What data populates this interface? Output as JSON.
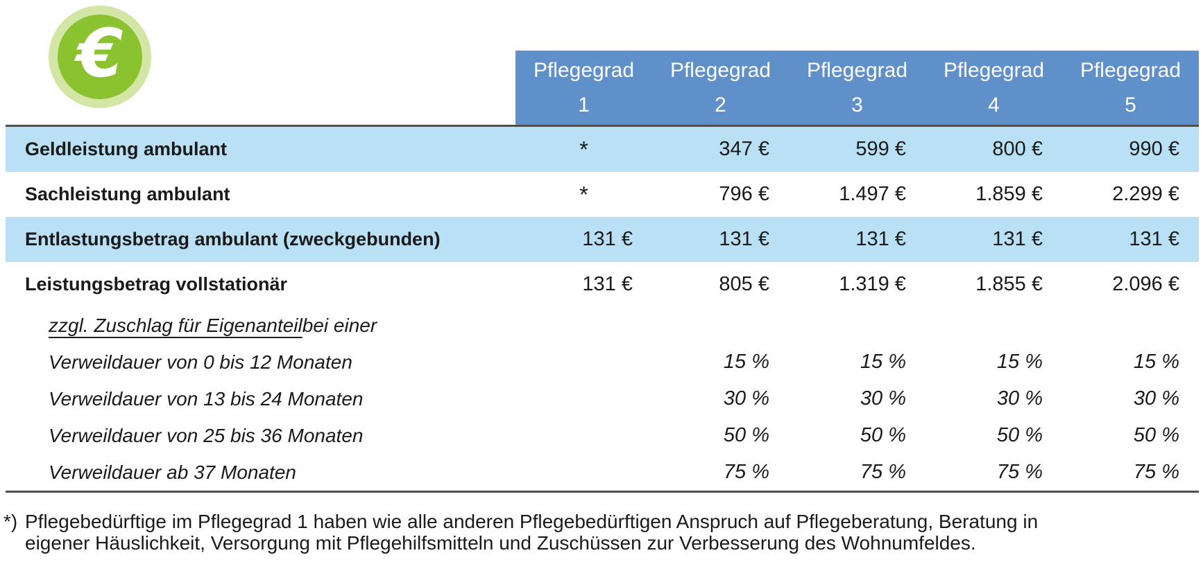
{
  "icon": {
    "symbol": "€",
    "name": "euro-badge"
  },
  "colors": {
    "header_bg": "#6090c9",
    "header_text": "#ffffff",
    "highlight_row_bg": "#b9e0f4",
    "rule_line": "#4f4f4f",
    "icon_green": "#8bc22f",
    "icon_ring_green": "#d4e6a5",
    "body_text": "#1a1a1a"
  },
  "table": {
    "col_headers": [
      {
        "line1": "Pflegegrad",
        "line2": "1"
      },
      {
        "line1": "Pflegegrad",
        "line2": "2"
      },
      {
        "line1": "Pflegegrad",
        "line2": "3"
      },
      {
        "line1": "Pflegegrad",
        "line2": "4"
      },
      {
        "line1": "Pflegegrad",
        "line2": "5"
      }
    ],
    "rows": [
      {
        "label": "Geldleistung ambulant",
        "style": "highlight",
        "values": [
          "*",
          "347 €",
          "599 €",
          "800 €",
          "990 €"
        ]
      },
      {
        "label": "Sachleistung ambulant",
        "style": "plain",
        "values": [
          "*",
          "796 €",
          "1.497 €",
          "1.859 €",
          "2.299 €"
        ]
      },
      {
        "label": "Entlastungsbetrag ambulant (zweckgebunden)",
        "style": "highlight",
        "values": [
          "131 €",
          "131 €",
          "131 €",
          "131 €",
          "131 €"
        ]
      },
      {
        "label": "Leistungsbetrag vollstationär",
        "style": "plain",
        "values": [
          "131 €",
          "805 €",
          "1.319 €",
          "1.855 €",
          "2.096 €"
        ]
      },
      {
        "label_underline": "zzgl. Zuschlag für Eigenanteil",
        "label_rest": " bei einer",
        "style": "subheader",
        "values": [
          "",
          "",
          "",
          "",
          ""
        ]
      },
      {
        "label": "Verweildauer von 0 bis 12 Monaten",
        "style": "sub",
        "values": [
          "",
          "15 %",
          "15 %",
          "15 %",
          "15 %"
        ]
      },
      {
        "label": "Verweildauer von 13 bis 24 Monaten",
        "style": "sub",
        "values": [
          "",
          "30 %",
          "30 %",
          "30 %",
          "30 %"
        ]
      },
      {
        "label": "Verweildauer von 25 bis 36 Monaten",
        "style": "sub",
        "values": [
          "",
          "50 %",
          "50 %",
          "50 %",
          "50 %"
        ]
      },
      {
        "label": "Verweildauer ab 37 Monaten",
        "style": "sub",
        "values": [
          "",
          "75 %",
          "75 %",
          "75 %",
          "75 %"
        ]
      }
    ]
  },
  "footnote": {
    "marker": "*)",
    "text": "Pflegebedürftige im Pflegegrad 1 haben wie alle anderen Pflegebedürftigen Anspruch auf Pflegeberatung, Beratung in eigener Häuslichkeit, Versorgung mit Pflegehilfsmitteln und Zuschüssen zur Verbesserung des Wohnumfeldes."
  }
}
